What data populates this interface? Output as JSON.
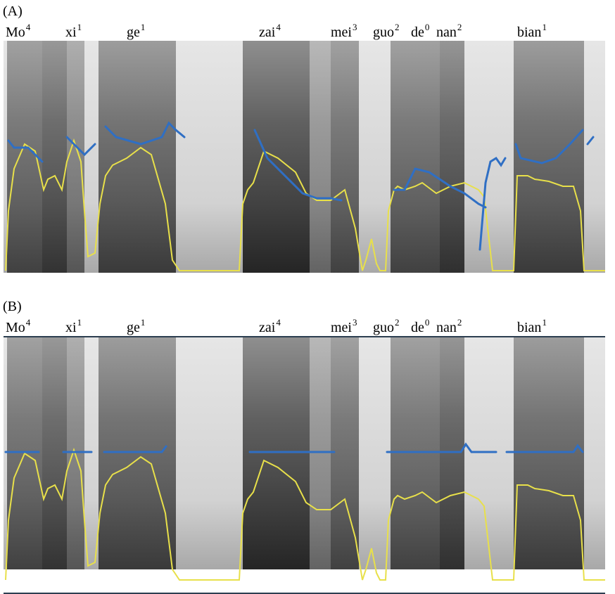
{
  "panels": [
    {
      "label": "(A)",
      "syllables": [
        {
          "text": "Mo",
          "tone": "4"
        },
        {
          "text": "xi",
          "tone": "1"
        },
        {
          "text": "ge",
          "tone": "1"
        },
        {
          "text": "zai",
          "tone": "4"
        },
        {
          "text": "mei",
          "tone": "3"
        },
        {
          "text": "guo",
          "tone": "2"
        },
        {
          "text": "de",
          "tone": "0"
        },
        {
          "text": "nan",
          "tone": "2"
        },
        {
          "text": "bian",
          "tone": "1"
        }
      ]
    },
    {
      "label": "(B)",
      "syllables": [
        {
          "text": "Mo",
          "tone": "4"
        },
        {
          "text": "xi",
          "tone": "1"
        },
        {
          "text": "ge",
          "tone": "1"
        },
        {
          "text": "zai",
          "tone": "4"
        },
        {
          "text": "mei",
          "tone": "3"
        },
        {
          "text": "guo",
          "tone": "2"
        },
        {
          "text": "de",
          "tone": "0"
        },
        {
          "text": "nan",
          "tone": "2"
        },
        {
          "text": "bian",
          "tone": "1"
        }
      ]
    }
  ]
}
